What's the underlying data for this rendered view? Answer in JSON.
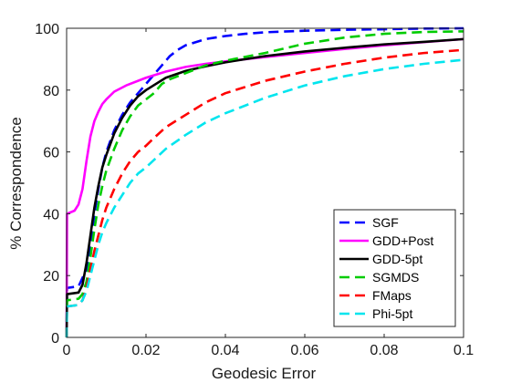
{
  "chart_data": {
    "type": "line",
    "title": "",
    "xlabel": "Geodesic Error",
    "ylabel": "% Correspondence",
    "xlim": [
      0,
      0.1
    ],
    "ylim": [
      0,
      100
    ],
    "x_ticks": [
      0,
      0.02,
      0.04,
      0.06,
      0.08,
      0.1
    ],
    "x_tick_labels": [
      "0",
      "0.02",
      "0.04",
      "0.06",
      "0.08",
      "0.1"
    ],
    "y_ticks": [
      0,
      20,
      40,
      60,
      80,
      100
    ],
    "y_tick_labels": [
      "0",
      "20",
      "40",
      "60",
      "80",
      "100"
    ],
    "grid": false,
    "legend_position": "bottom-right",
    "series": [
      {
        "name": "SGF",
        "color": "#0000ff",
        "dash": "dashed",
        "x": [
          0,
          0.0001,
          0.003,
          0.005,
          0.006,
          0.007,
          0.008,
          0.009,
          0.01,
          0.012,
          0.014,
          0.016,
          0.018,
          0.02,
          0.022,
          0.024,
          0.026,
          0.028,
          0.03,
          0.035,
          0.04,
          0.045,
          0.05,
          0.06,
          0.07,
          0.08,
          0.09,
          0.1
        ],
        "y": [
          0,
          16,
          16.5,
          22,
          30,
          40,
          48,
          55,
          60,
          67,
          72,
          76,
          79,
          82,
          85,
          88,
          91,
          93,
          94.5,
          96.5,
          97.5,
          98.2,
          98.7,
          99.2,
          99.5,
          99.7,
          99.9,
          100
        ]
      },
      {
        "name": "GDD+Post",
        "color": "#ff00ff",
        "dash": "solid",
        "x": [
          0,
          0.0001,
          0.002,
          0.003,
          0.004,
          0.005,
          0.006,
          0.007,
          0.008,
          0.009,
          0.01,
          0.012,
          0.015,
          0.02,
          0.025,
          0.03,
          0.035,
          0.04,
          0.05,
          0.06,
          0.07,
          0.08,
          0.09,
          0.1
        ],
        "y": [
          0,
          40,
          41,
          43,
          48,
          57,
          65,
          70,
          73,
          75.5,
          77,
          79.5,
          81.5,
          84,
          86,
          87.5,
          88.5,
          89.3,
          90.7,
          92,
          93.3,
          94.5,
          95.5,
          96.5
        ]
      },
      {
        "name": "GDD-5pt",
        "color": "#000000",
        "dash": "solid",
        "x": [
          0,
          0.0001,
          0.003,
          0.004,
          0.005,
          0.006,
          0.007,
          0.008,
          0.009,
          0.01,
          0.012,
          0.014,
          0.016,
          0.018,
          0.02,
          0.025,
          0.03,
          0.035,
          0.04,
          0.05,
          0.06,
          0.07,
          0.08,
          0.09,
          0.1
        ],
        "y": [
          0,
          14,
          14.5,
          17,
          24,
          33,
          42,
          49,
          55,
          59,
          66,
          71,
          75,
          78,
          80,
          84,
          86.2,
          87.7,
          89,
          91,
          92.5,
          93.7,
          94.8,
          95.6,
          96.5
        ]
      },
      {
        "name": "SGMDS",
        "color": "#00cc00",
        "dash": "dashed",
        "x": [
          0,
          0.0001,
          0.003,
          0.004,
          0.005,
          0.006,
          0.007,
          0.008,
          0.009,
          0.01,
          0.012,
          0.014,
          0.016,
          0.018,
          0.02,
          0.022,
          0.024,
          0.026,
          0.028,
          0.03,
          0.035,
          0.04,
          0.05,
          0.06,
          0.07,
          0.08,
          0.09,
          0.1
        ],
        "y": [
          0,
          12,
          12.5,
          14,
          18,
          26,
          35,
          43,
          49,
          54,
          61,
          67,
          71.5,
          75,
          77,
          79,
          82,
          83.5,
          84.5,
          85.5,
          88,
          89.5,
          92,
          95,
          97,
          98.2,
          98.8,
          99
        ]
      },
      {
        "name": "FMaps",
        "color": "#ff0000",
        "dash": "dashed",
        "x": [
          0,
          0.0001,
          0.003,
          0.004,
          0.005,
          0.006,
          0.007,
          0.008,
          0.009,
          0.01,
          0.012,
          0.014,
          0.016,
          0.018,
          0.02,
          0.022,
          0.025,
          0.03,
          0.035,
          0.04,
          0.05,
          0.06,
          0.07,
          0.08,
          0.09,
          0.1
        ],
        "y": [
          0,
          10,
          10.5,
          12,
          16,
          22,
          28,
          33,
          38,
          42,
          48,
          53,
          57,
          60,
          62,
          64.5,
          68,
          72,
          76,
          79,
          83,
          86,
          88.5,
          90.5,
          92,
          93
        ]
      },
      {
        "name": "Phi-5pt",
        "color": "#00e5ee",
        "dash": "dashed",
        "x": [
          0,
          0.0001,
          0.003,
          0.004,
          0.005,
          0.006,
          0.007,
          0.008,
          0.009,
          0.01,
          0.012,
          0.014,
          0.016,
          0.018,
          0.02,
          0.025,
          0.03,
          0.035,
          0.04,
          0.05,
          0.06,
          0.07,
          0.08,
          0.09,
          0.1
        ],
        "y": [
          0,
          10,
          10.5,
          12,
          15,
          20,
          25,
          30,
          34,
          37,
          42,
          46,
          50,
          53,
          55,
          61,
          65.5,
          69.5,
          72.5,
          77.5,
          81.5,
          84.5,
          86.8,
          88.5,
          89.8
        ]
      }
    ]
  }
}
